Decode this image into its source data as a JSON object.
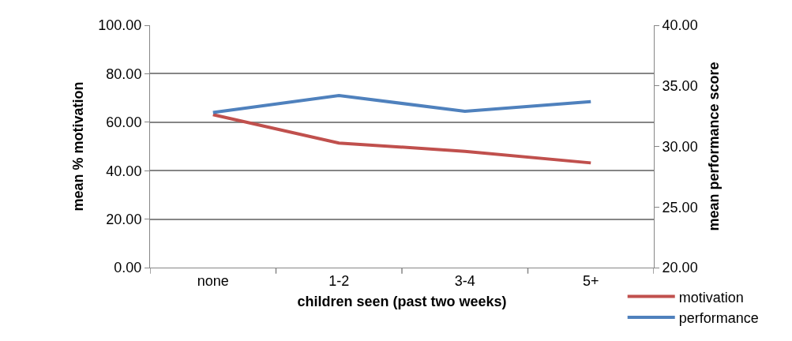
{
  "chart_data": {
    "type": "line",
    "categories": [
      "none",
      "1-2",
      "3-4",
      "5+"
    ],
    "xlabel": "children seen (past two weeks)",
    "ylabel": "mean % motivation",
    "y2label": "mean performance score",
    "series": [
      {
        "name": "motivation",
        "color": "#c0504d",
        "values": [
          63.1,
          51.4,
          48.0,
          43.2
        ]
      },
      {
        "name": "performance",
        "color": "#4f81bd",
        "axis": "y2",
        "values": [
          32.8,
          34.2,
          32.9,
          33.7
        ]
      }
    ],
    "ylim": [
      0,
      100
    ],
    "yticks": [
      {
        "value": 0,
        "label": "0.00"
      },
      {
        "value": 20,
        "label": "20.00"
      },
      {
        "value": 40,
        "label": "40.00"
      },
      {
        "value": 60,
        "label": "60.00"
      },
      {
        "value": 80,
        "label": "80.00"
      },
      {
        "value": 100,
        "label": "100.00"
      }
    ],
    "y2lim": [
      20,
      40
    ],
    "y2ticks": [
      {
        "value": 20,
        "label": "20.00"
      },
      {
        "value": 25,
        "label": "25.00"
      },
      {
        "value": 30,
        "label": "30.00"
      },
      {
        "value": 35,
        "label": "35.00"
      },
      {
        "value": 40,
        "label": "40.00"
      }
    ],
    "grid": "y",
    "legend": "bottom right",
    "marker": "none",
    "line_style": "solid"
  }
}
